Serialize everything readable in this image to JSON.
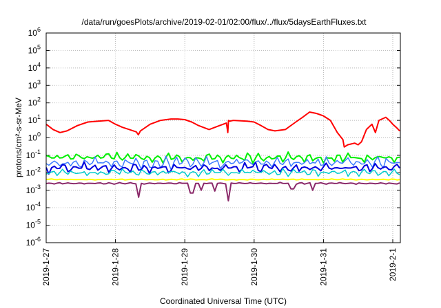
{
  "chart_data": {
    "type": "line",
    "title": "/data/run/goesPlots/archive/2019-02-01/02:00/flux/../flux/5daysEarthFluxes.txt",
    "xlabel": "Coordinated Universal Time (UTC)",
    "ylabel": "protons/cm²-s-sr-MeV",
    "y_scale": "log",
    "ylim": [
      1e-06,
      1000000.0
    ],
    "y_ticks": [
      {
        "base": "10",
        "exp": "-6"
      },
      {
        "base": "10",
        "exp": "-5"
      },
      {
        "base": "10",
        "exp": "-4"
      },
      {
        "base": "10",
        "exp": "-3"
      },
      {
        "base": "10",
        "exp": "-2"
      },
      {
        "base": "10",
        "exp": "-1"
      },
      {
        "base": "10",
        "exp": "0"
      },
      {
        "base": "10",
        "exp": "1"
      },
      {
        "base": "10",
        "exp": "2"
      },
      {
        "base": "10",
        "exp": "3"
      },
      {
        "base": "10",
        "exp": "4"
      },
      {
        "base": "10",
        "exp": "5"
      },
      {
        "base": "10",
        "exp": "6"
      }
    ],
    "x_ticks": [
      "2019-1-27",
      "2019-1-28",
      "2019-1-29",
      "2019-1-30",
      "2019-1-31",
      "2019-2-1"
    ],
    "xlim_days": [
      0,
      5.1
    ],
    "grid": true,
    "series": [
      {
        "color": "#ff0000",
        "width": 2,
        "x": [
          0,
          0.1,
          0.2,
          0.3,
          0.45,
          0.6,
          0.75,
          0.9,
          1.0,
          1.1,
          1.2,
          1.3,
          1.33,
          1.36,
          1.5,
          1.65,
          1.8,
          1.9,
          2.0,
          2.1,
          2.2,
          2.35,
          2.5,
          2.6,
          2.62,
          2.63,
          2.65,
          2.7,
          2.9,
          3.0,
          3.1,
          3.2,
          3.3,
          3.45,
          3.6,
          3.7,
          3.8,
          3.9,
          4.0,
          4.1,
          4.2,
          4.28,
          4.3,
          4.35,
          4.45,
          4.5,
          4.55,
          4.62,
          4.7,
          4.75,
          4.8,
          4.9,
          4.95,
          5.0,
          5.05,
          5.1
        ],
        "y": [
          6,
          3,
          2,
          2.5,
          5,
          8,
          9,
          10,
          6,
          4,
          3,
          2.2,
          1.5,
          2.5,
          6,
          10,
          12,
          12,
          11,
          8,
          5,
          3,
          5,
          7,
          2,
          10,
          9,
          10,
          9,
          8,
          5,
          3,
          2.5,
          3,
          8,
          15,
          30,
          25,
          18,
          10,
          2,
          0.8,
          0.3,
          0.4,
          0.5,
          0.4,
          0.6,
          3,
          6,
          2,
          10,
          15,
          10,
          6,
          4,
          2.5
        ]
      },
      {
        "color": "#00ee00",
        "width": 2,
        "band": [
          0.035,
          0.15
        ],
        "base": 0.08
      },
      {
        "color": "#3d7dff",
        "width": 1.5,
        "band": [
          0.015,
          0.09
        ],
        "base": 0.04
      },
      {
        "color": "#0000dd",
        "width": 2,
        "band": [
          0.009,
          0.04
        ],
        "base": 0.018
      },
      {
        "color": "#00cccc",
        "width": 1.5,
        "band": [
          0.006,
          0.018
        ],
        "base": 0.01
      },
      {
        "color": "#ffff00",
        "width": 2,
        "band": [
          0.0038,
          0.0045
        ],
        "base": 0.0042
      },
      {
        "color": "#8b2a6a",
        "width": 2,
        "band": [
          0.0022,
          0.0028
        ],
        "base": 0.0025,
        "dips": [
          [
            1.33,
            0.0004
          ],
          [
            2.1,
            0.0007
          ],
          [
            2.25,
            0.001
          ],
          [
            2.42,
            0.0009
          ],
          [
            2.62,
            0.00025
          ],
          [
            3.55,
            0.0012
          ],
          [
            3.85,
            0.001
          ]
        ]
      }
    ]
  }
}
